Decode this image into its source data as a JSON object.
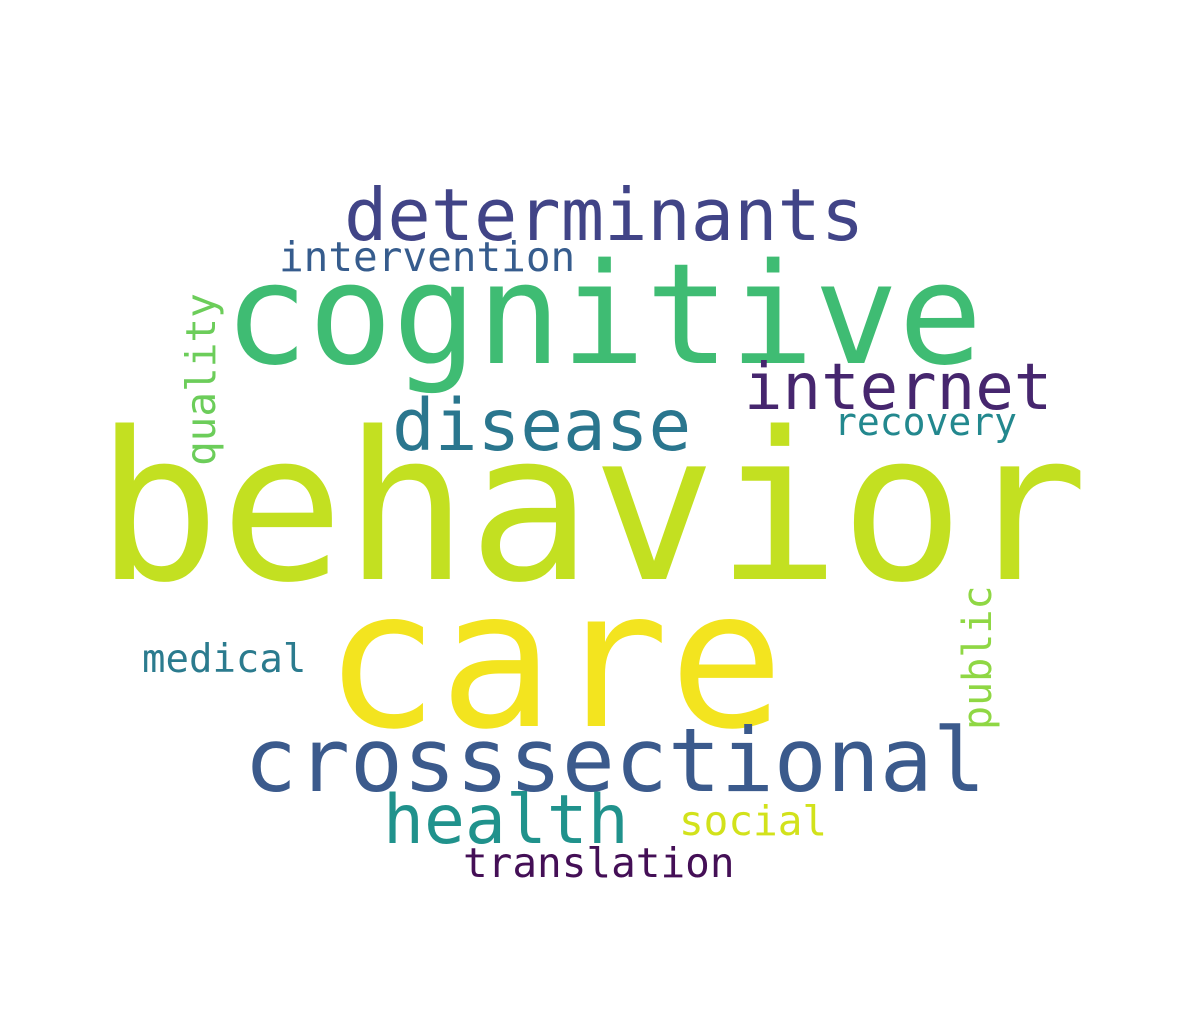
{
  "words": {
    "behavior": {
      "text": "behavior",
      "color": "#c3e021"
    },
    "care": {
      "text": "care",
      "color": "#f3e41f"
    },
    "cognitive": {
      "text": "cognitive",
      "color": "#3fbc73"
    },
    "crosssectional": {
      "text": "crosssectional",
      "color": "#3b5a8c"
    },
    "determinants": {
      "text": "determinants",
      "color": "#414487"
    },
    "disease": {
      "text": "disease",
      "color": "#2a768e"
    },
    "internet": {
      "text": "internet",
      "color": "#46266e"
    },
    "health": {
      "text": "health",
      "color": "#20928c"
    },
    "intervention": {
      "text": "intervention",
      "color": "#365c8d"
    },
    "recovery": {
      "text": "recovery",
      "color": "#23888e"
    },
    "medical": {
      "text": "medical",
      "color": "#2b7b8e"
    },
    "social": {
      "text": "social",
      "color": "#d2e21b"
    },
    "translation": {
      "text": "translation",
      "color": "#440f56"
    },
    "quality": {
      "text": "quality",
      "color": "#6ccd5a"
    },
    "public": {
      "text": "public",
      "color": "#8fd744"
    }
  }
}
